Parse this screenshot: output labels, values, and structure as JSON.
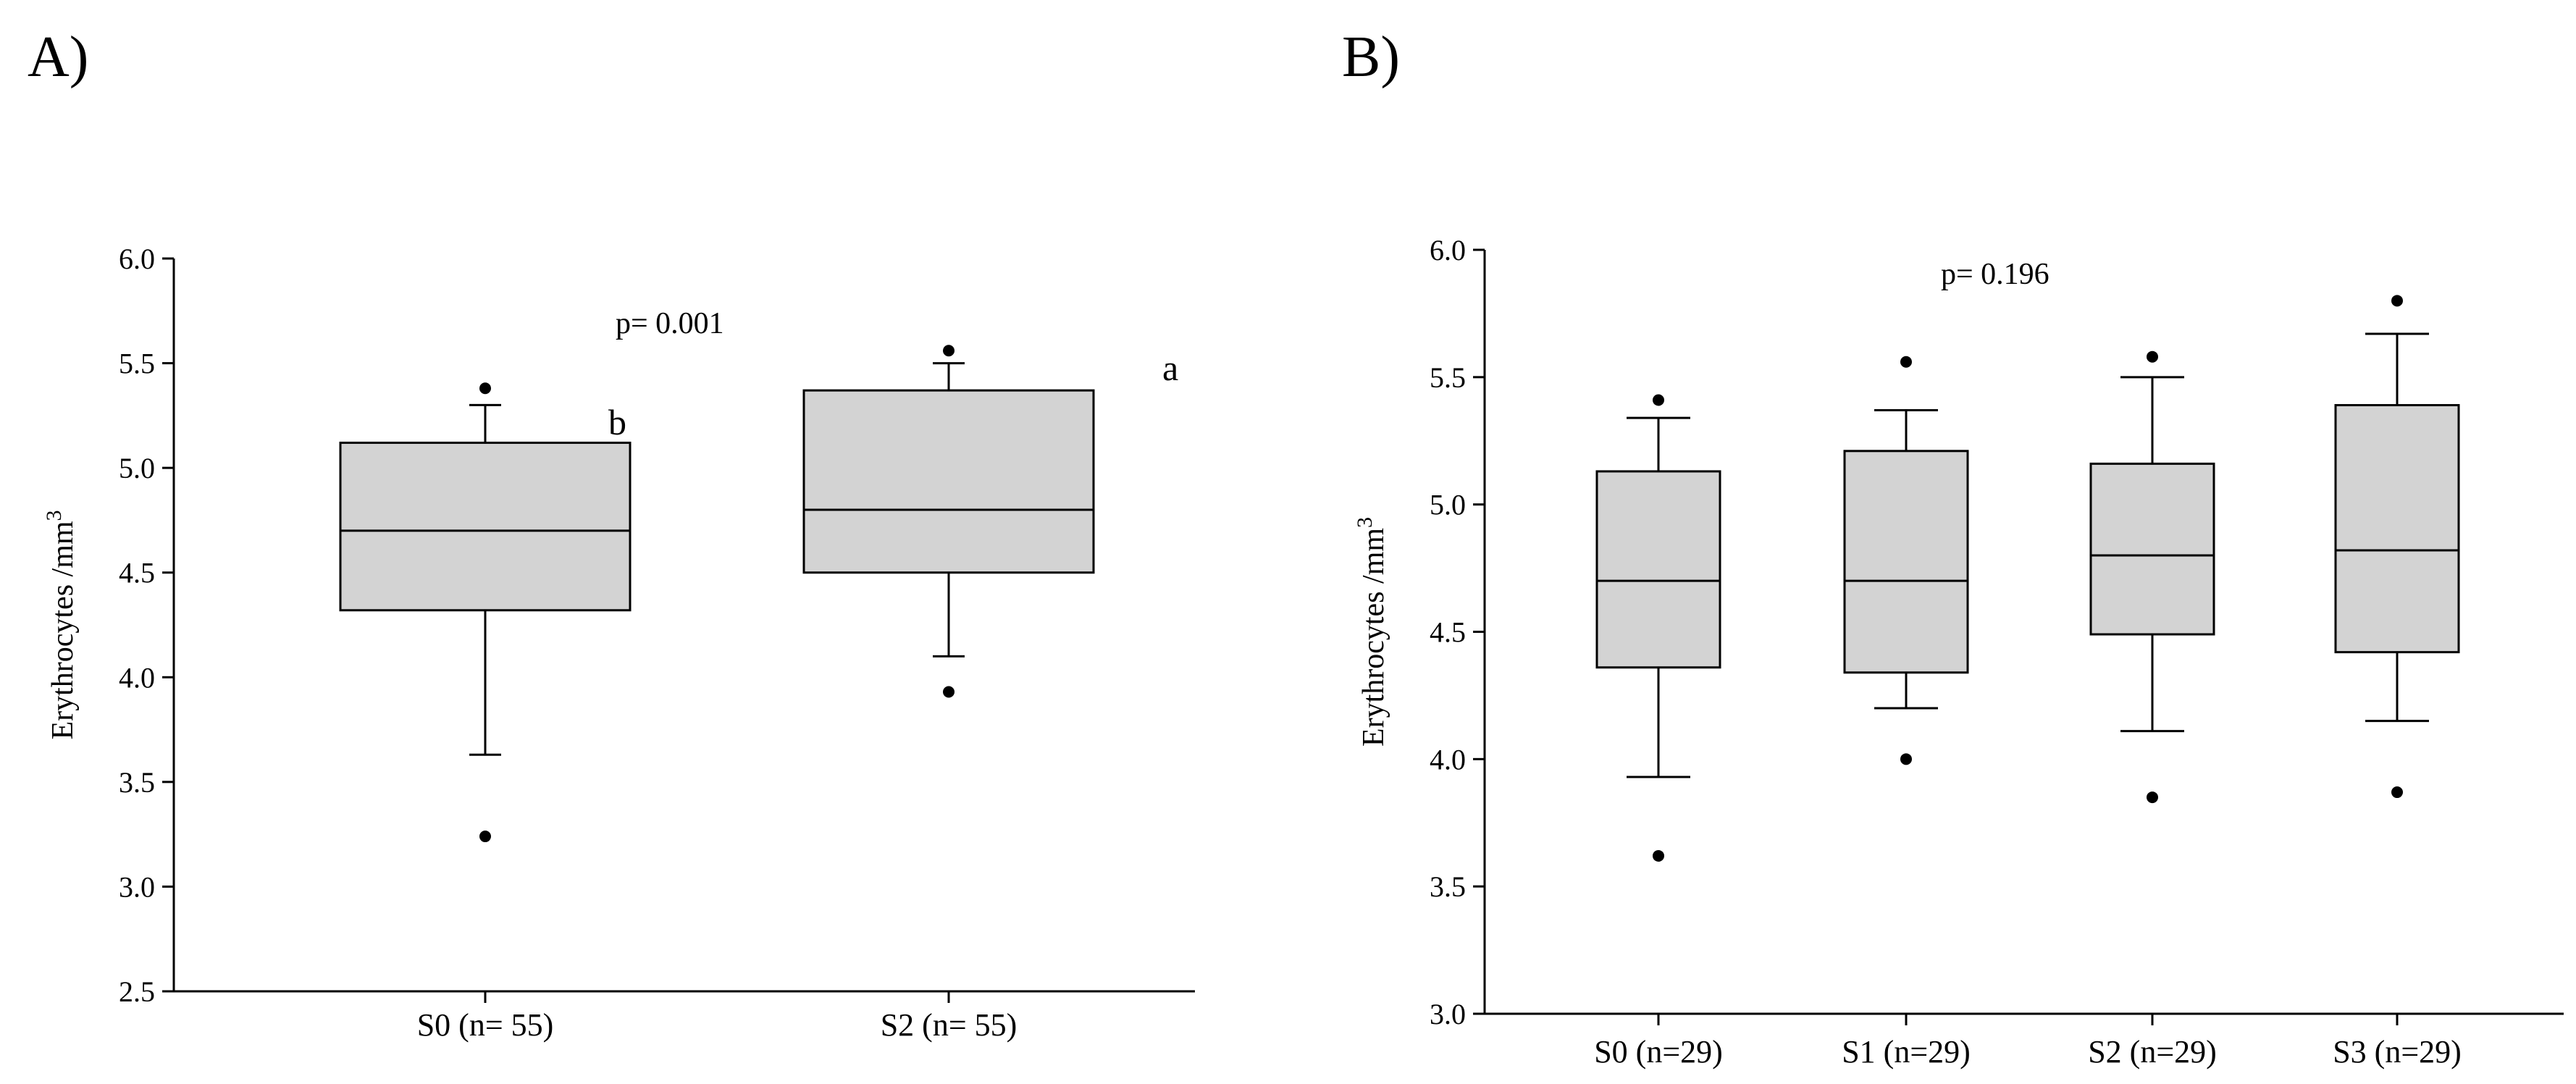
{
  "chart_data": [
    {
      "type": "box",
      "panel_label": "A)",
      "ylabel": "Erythrocytes /mm",
      "ylabel_sup": "3",
      "ylim": [
        2.5,
        6.0
      ],
      "yticks": [
        "2.5",
        "3.0",
        "3.5",
        "4.0",
        "4.5",
        "5.0",
        "5.5",
        "6.0"
      ],
      "categories": [
        "S0 (n= 55)",
        "S2 (n= 55)"
      ],
      "annotation": "p= 0.001",
      "group_letters": [
        "b",
        "a"
      ],
      "fill_color": "#d3d3d3",
      "boxes": [
        {
          "q1": 4.32,
          "median": 4.7,
          "q3": 5.12,
          "whisker_low": 3.63,
          "whisker_high": 5.3,
          "outliers": [
            3.24,
            5.38
          ]
        },
        {
          "q1": 4.5,
          "median": 4.8,
          "q3": 5.37,
          "whisker_low": 4.1,
          "whisker_high": 5.5,
          "outliers": [
            3.93,
            5.56
          ]
        }
      ]
    },
    {
      "type": "box",
      "panel_label": "B)",
      "ylabel": "Erythrocytes /mm",
      "ylabel_sup": "3",
      "ylim": [
        3.0,
        6.0
      ],
      "yticks": [
        "3.0",
        "3.5",
        "4.0",
        "4.5",
        "5.0",
        "5.5",
        "6.0"
      ],
      "categories": [
        "S0 (n=29)",
        "S1 (n=29)",
        "S2 (n=29)",
        "S3 (n=29)"
      ],
      "annotation": "p= 0.196",
      "fill_color": "#d3d3d3",
      "boxes": [
        {
          "q1": 4.36,
          "median": 4.7,
          "q3": 5.13,
          "whisker_low": 3.93,
          "whisker_high": 5.34,
          "outliers": [
            3.62,
            5.41
          ]
        },
        {
          "q1": 4.34,
          "median": 4.7,
          "q3": 5.21,
          "whisker_low": 4.2,
          "whisker_high": 5.37,
          "outliers": [
            4.0,
            5.56
          ]
        },
        {
          "q1": 4.49,
          "median": 4.8,
          "q3": 5.16,
          "whisker_low": 4.11,
          "whisker_high": 5.5,
          "outliers": [
            3.85,
            5.58
          ]
        },
        {
          "q1": 4.42,
          "median": 4.82,
          "q3": 5.39,
          "whisker_low": 4.15,
          "whisker_high": 5.67,
          "outliers": [
            3.87,
            5.8
          ]
        }
      ]
    }
  ]
}
